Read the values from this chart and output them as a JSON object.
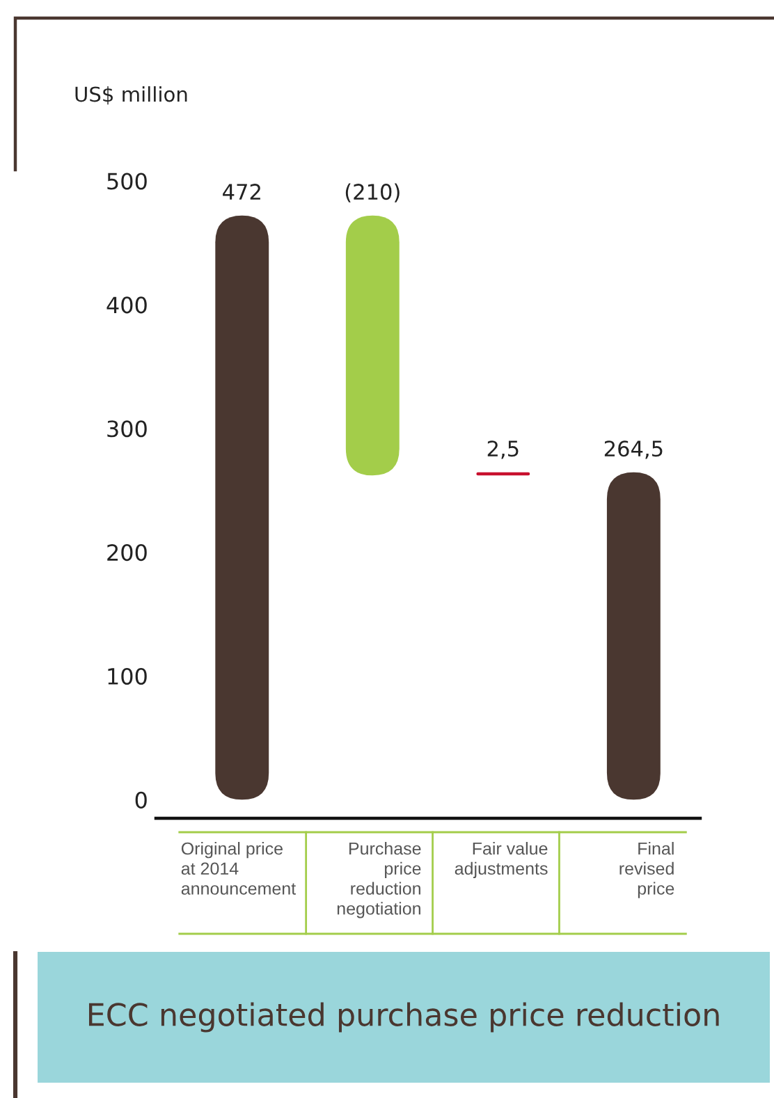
{
  "chart_data": {
    "type": "bar",
    "title": "ECC negotiated purchase price reduction",
    "ylabel": "US$ million",
    "categories": [
      "Original price\nat 2014\nannouncement",
      "Purchase\nprice\nreduction\nnegotiation",
      "Fair value\nadjustments",
      "Final\nrevised\nprice"
    ],
    "values": [
      472,
      -210,
      2.5,
      264.5
    ],
    "base": [
      0,
      472,
      262,
      0
    ],
    "colors": [
      "#4a3730",
      "#a3cd4a",
      "#c8102e",
      "#4a3730"
    ],
    "value_labels": [
      "472",
      "(210)",
      "2,5",
      "264,5"
    ],
    "ylim": [
      -15,
      500
    ],
    "yticks": [
      0,
      100,
      200,
      300,
      400,
      500
    ]
  }
}
